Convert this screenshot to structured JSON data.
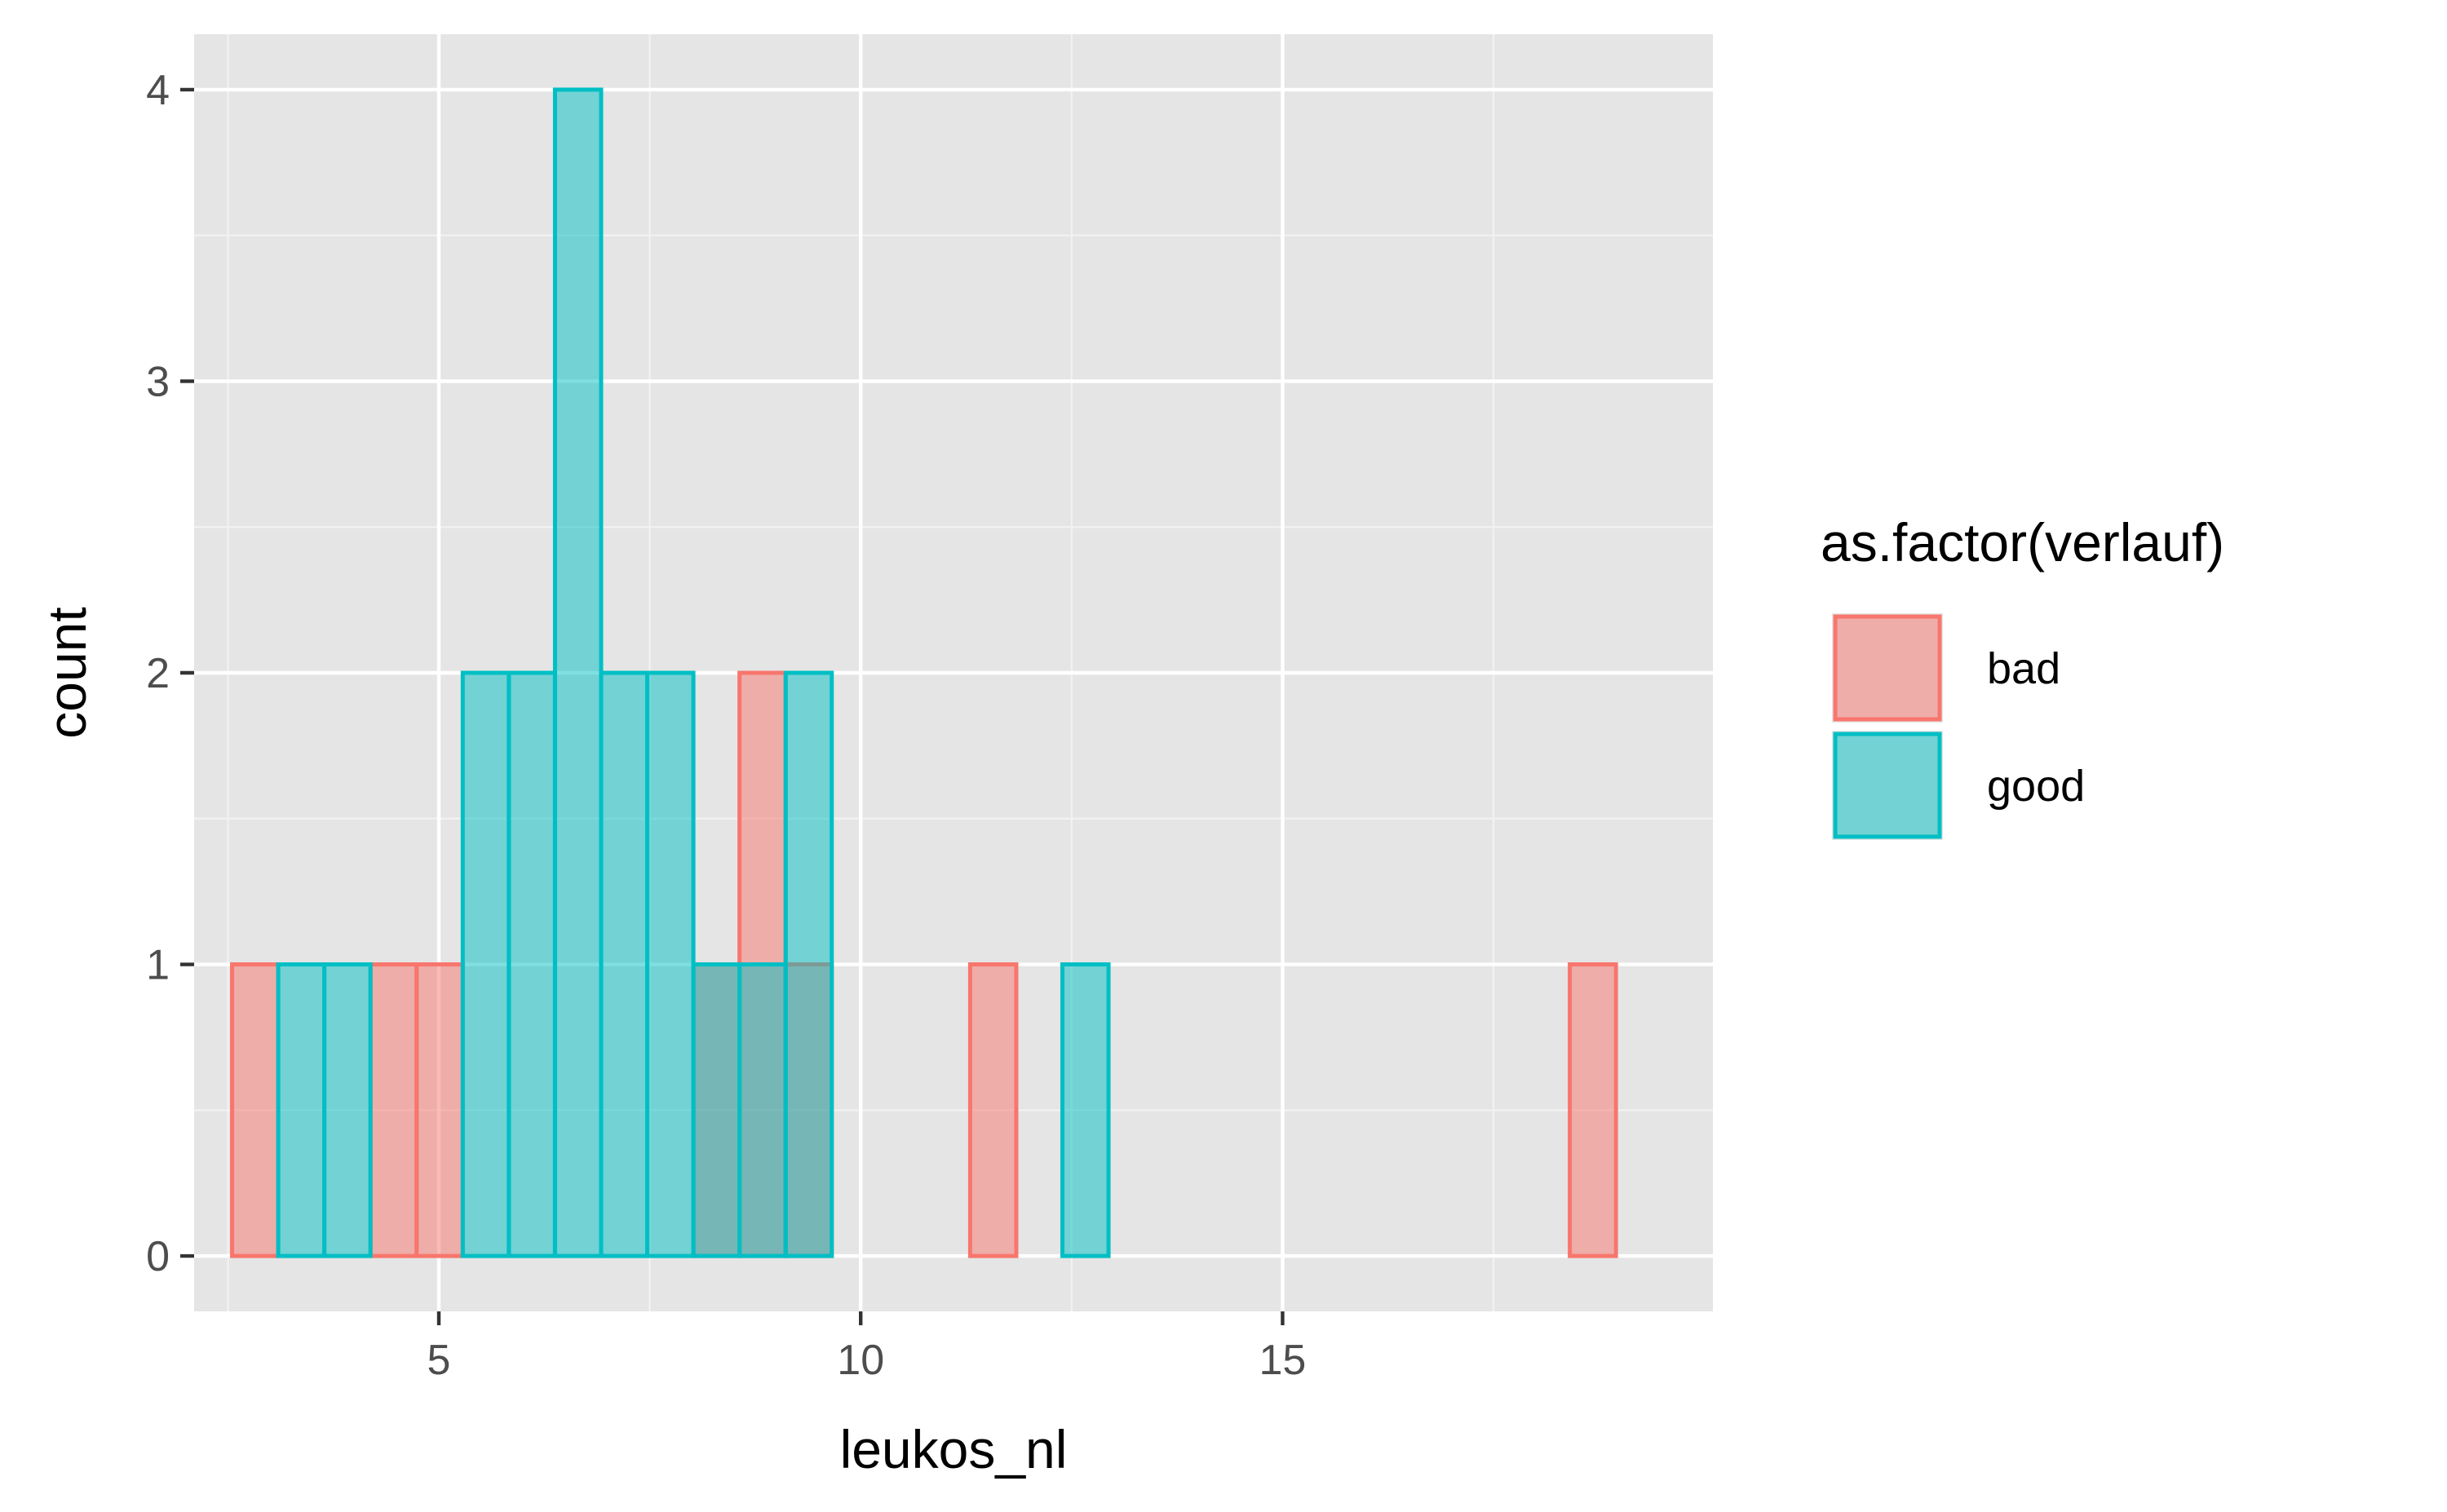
{
  "chart_data": {
    "type": "histogram",
    "xlabel": "leukos_nl",
    "ylabel": "count",
    "xlim": [
      2.1,
      20.1
    ],
    "ylim": [
      -0.19,
      4.19
    ],
    "x_ticks": [
      5,
      10,
      15
    ],
    "y_ticks": [
      0,
      1,
      2,
      3,
      4
    ],
    "grid": true,
    "background": "#e5e5e5",
    "bin_start": 2.55,
    "bin_width": 0.5467,
    "legend": {
      "title": "as.factor(verlauf)",
      "placement": "right"
    },
    "series": [
      {
        "name": "bad",
        "fill": "#f8766d",
        "color": "#f8766d",
        "counts": [
          1,
          0,
          0,
          1,
          1,
          0,
          0,
          0,
          0,
          0,
          1,
          2,
          1,
          0,
          0,
          0,
          1,
          0,
          0,
          0,
          0,
          0,
          0,
          0,
          0,
          0,
          0,
          0,
          0,
          1
        ]
      },
      {
        "name": "good",
        "fill": "#00bfc4",
        "color": "#00bfc4",
        "counts": [
          0,
          1,
          1,
          0,
          0,
          2,
          2,
          4,
          2,
          2,
          1,
          1,
          2,
          0,
          0,
          0,
          0,
          0,
          1,
          0,
          0,
          0,
          0,
          0,
          0,
          0,
          0,
          0,
          0,
          0
        ]
      }
    ]
  }
}
